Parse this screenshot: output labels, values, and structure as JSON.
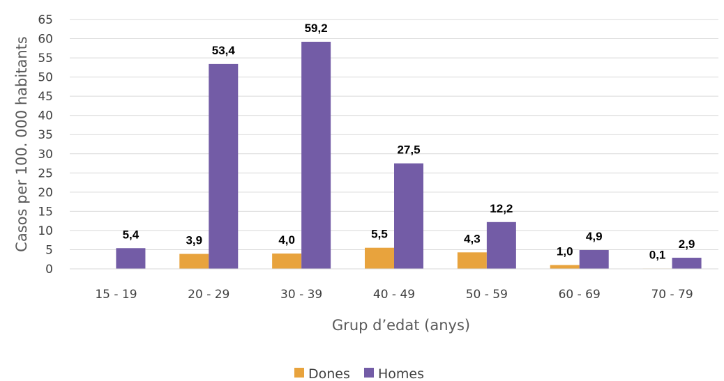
{
  "chart_data": {
    "type": "bar",
    "title": "",
    "xlabel": "Grup d’edat (anys)",
    "ylabel": "Casos per 100. 000 habitants",
    "ylim": [
      0,
      65
    ],
    "yticks": [
      0,
      5,
      10,
      15,
      20,
      25,
      30,
      35,
      40,
      45,
      50,
      55,
      60,
      65
    ],
    "categories": [
      "15 - 19",
      "20 - 29",
      "30 - 39",
      "40 - 49",
      "50 - 59",
      "60 - 69",
      "70 - 79"
    ],
    "grid": true,
    "legend_position": "bottom",
    "series": [
      {
        "name": "Dones",
        "color": "#E8A33D",
        "values": [
          null,
          3.9,
          4.0,
          5.5,
          4.3,
          1.0,
          0.1
        ],
        "labels": [
          "",
          "3,9",
          "4,0",
          "5,5",
          "4,3",
          "1,0",
          "0,1"
        ]
      },
      {
        "name": "Homes",
        "color": "#735CA6",
        "values": [
          5.4,
          53.4,
          59.2,
          27.5,
          12.2,
          4.9,
          2.9
        ],
        "labels": [
          "5,4",
          "53,4",
          "59,2",
          "27,5",
          "12,2",
          "4,9",
          "2,9"
        ]
      }
    ]
  }
}
